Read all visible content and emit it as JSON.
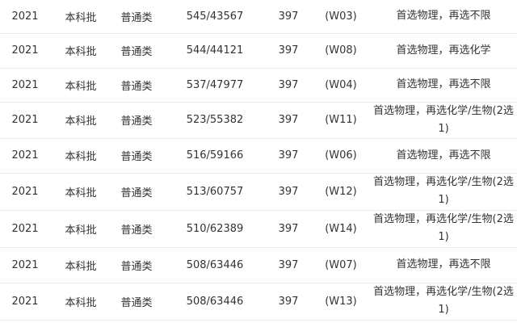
{
  "rows": [
    {
      "year": "2021",
      "batch": "本科批",
      "type": "普通类",
      "score_rank": "545/43567",
      "count": "397",
      "code": "(W03)",
      "subjects": "首选物理，再选不限"
    },
    {
      "year": "2021",
      "batch": "本科批",
      "type": "普通类",
      "score_rank": "544/44121",
      "count": "397",
      "code": "(W08)",
      "subjects": "首选物理，再选化学"
    },
    {
      "year": "2021",
      "batch": "本科批",
      "type": "普通类",
      "score_rank": "537/47977",
      "count": "397",
      "code": "(W04)",
      "subjects": "首选物理，再选不限"
    },
    {
      "year": "2021",
      "batch": "本科批",
      "type": "普通类",
      "score_rank": "523/55382",
      "count": "397",
      "code": "(W11)",
      "subjects": "首选物理，再选化学/生物(2选1)"
    },
    {
      "year": "2021",
      "batch": "本科批",
      "type": "普通类",
      "score_rank": "516/59166",
      "count": "397",
      "code": "(W06)",
      "subjects": "首选物理，再选不限"
    },
    {
      "year": "2021",
      "batch": "本科批",
      "type": "普通类",
      "score_rank": "513/60757",
      "count": "397",
      "code": "(W12)",
      "subjects": "首选物理，再选化学/生物(2选1)"
    },
    {
      "year": "2021",
      "batch": "本科批",
      "type": "普通类",
      "score_rank": "510/62389",
      "count": "397",
      "code": "(W14)",
      "subjects": "首选物理，再选化学/生物(2选1)"
    },
    {
      "year": "2021",
      "batch": "本科批",
      "type": "普通类",
      "score_rank": "508/63446",
      "count": "397",
      "code": "(W07)",
      "subjects": "首选物理，再选不限"
    },
    {
      "year": "2021",
      "batch": "本科批",
      "type": "普通类",
      "score_rank": "508/63446",
      "count": "397",
      "code": "(W13)",
      "subjects": "首选物理，再选化学/生物(2选1)"
    }
  ]
}
